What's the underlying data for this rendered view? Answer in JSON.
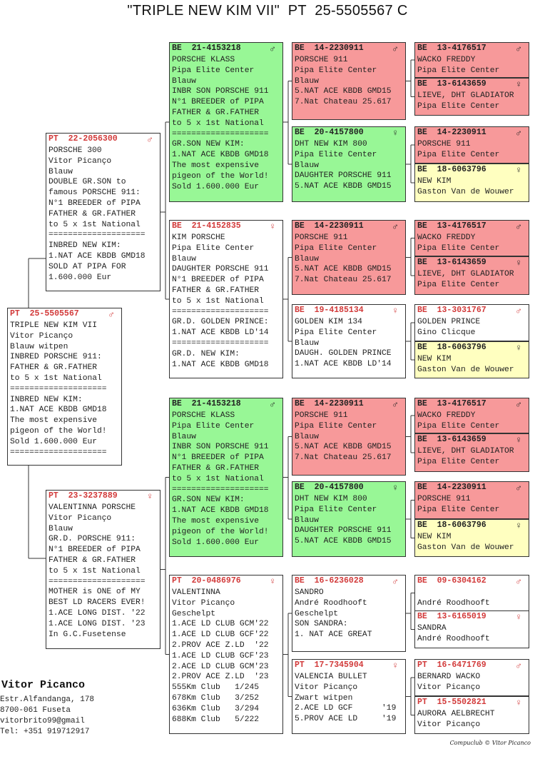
{
  "title": "\"TRIPLE NEW KIM VII\"  PT  25-5505567 C",
  "colors": {
    "green": "#98f796",
    "red": "#f7999a",
    "yellow": "#ffffc0",
    "ring_red": "#d23a3a"
  },
  "pigeons": [
    {
      "country": "PT",
      "ring": "25-5505567",
      "sex": "♂",
      "bg": "white",
      "lines": [
        "TRIPLE NEW KIM VII",
        "Vitor Picanço",
        "Blauw witpen",
        "INBRED PORSCHE 911:",
        "FATHER & GR.FATHER",
        "to 5 x 1st National",
        "====================",
        "INBRED NEW KIM:",
        "1.NAT ACE KBDB GMD18",
        "The most expensive",
        "pigeon of the World!",
        "Sold 1.600.000 Eur",
        "===================="
      ]
    },
    {
      "country": "PT",
      "ring": "22-2056300",
      "sex": "♂",
      "bg": "white",
      "lines": [
        "PORSCHE 300",
        "Vitor Picanço",
        "Blauw",
        "DOUBLE GR.SON to",
        "famous PORSCHE 911:",
        "N°1 BREEDER of PIPA",
        "FATHER & GR.FATHER",
        "to 5 x 1st National",
        "====================",
        "INBRED NEW KIM:",
        "1.NAT ACE KBDB GMD18",
        "SOLD AT PIPA FOR",
        "1.600.000 Eur"
      ]
    },
    {
      "country": "PT",
      "ring": "23-3237889",
      "sex": "♀",
      "bg": "white",
      "lines": [
        "VALENTINNA PORSCHE",
        "Vitor Picanço",
        "Blauw",
        "GR.D. PORSCHE 911:",
        "N°1 BREEDER of PIPA",
        "FATHER & GR.FATHER",
        "to 5 x 1st National",
        "====================",
        "MOTHER is ONE of MY",
        "BEST LD RACERS EVER!",
        "1.ACE LONG DIST. '22",
        "1.ACE LONG DIST. '23",
        "In G.C.Fusetense"
      ]
    },
    {
      "country": "BE",
      "ring": "21-4153218",
      "sex": "♂",
      "bg": "green",
      "lines": [
        "PORSCHE KLASS",
        "Pipa Elite Center",
        "Blauw",
        "INBR SON PORSCHE 911",
        "N°1 BREEDER of PIPA",
        "FATHER & GR.FATHER",
        "to 5 x 1st National",
        "====================",
        "GR.SON NEW KIM:",
        "1.NAT ACE KBDB GMD18",
        "The most expensive",
        "pigeon of the World!",
        "Sold 1.600.000 Eur"
      ]
    },
    {
      "country": "BE",
      "ring": "21-4152835",
      "sex": "♀",
      "bg": "white",
      "lines": [
        "KIM PORSCHE",
        "Pipa Elite Center",
        "Blauw",
        "DAUGHTER PORSCHE 911",
        "N°1 BREEDER of PIPA",
        "FATHER & GR.FATHER",
        "to 5 x 1st National",
        "====================",
        "GR.D. GOLDEN PRINCE:",
        "1.NAT ACE KBDB LD'14",
        "====================",
        "GR.D. NEW KIM:",
        "1.NAT ACE KBDB GMD18"
      ]
    },
    {
      "country": "BE",
      "ring": "21-4153218",
      "sex": "♂",
      "bg": "green",
      "lines": [
        "PORSCHE KLASS",
        "Pipa Elite Center",
        "Blauw",
        "INBR SON PORSCHE 911",
        "N°1 BREEDER of PIPA",
        "FATHER & GR.FATHER",
        "to 5 x 1st National",
        "====================",
        "GR.SON NEW KIM:",
        "1.NAT ACE KBDB GMD18",
        "The most expensive",
        "pigeon of the World!",
        "Sold 1.600.000 Eur"
      ]
    },
    {
      "country": "PT",
      "ring": "20-0486976",
      "sex": "♀",
      "bg": "white",
      "lines": [
        "VALENTINNA",
        "Vitor Picanço",
        "Geschelpt",
        "1.ACE LD CLUB GCM'22",
        "1.ACE LD CLUB GCF'22",
        "2.PROV ACE Z.LD  '22",
        "1.ACE LD CLUB GCF'23",
        "2.ACE LD CLUB GCM'23",
        "2.PROV ACE Z.LD  '23",
        "555Km Club   1/245",
        "678Km Club   3/252",
        "636Km Club   3/294",
        "688Km Club   5/222"
      ]
    },
    {
      "country": "BE",
      "ring": "14-2230911",
      "sex": "♂",
      "bg": "red",
      "lines": [
        "PORSCHE 911",
        "Pipa Elite Center",
        "Blauw",
        "5.NAT ACE KBDB GMD15",
        "7.Nat Chateau 25.617"
      ]
    },
    {
      "country": "BE",
      "ring": "20-4157800",
      "sex": "♀",
      "bg": "green",
      "lines": [
        "DHT NEW KIM 800",
        "Pipa Elite Center",
        "Blauw",
        "DAUGHTER PORSCHE 911",
        "5.NAT ACE KBDB GMD15"
      ]
    },
    {
      "country": "BE",
      "ring": "14-2230911",
      "sex": "♂",
      "bg": "red",
      "lines": [
        "PORSCHE 911",
        "Pipa Elite Center",
        "Blauw",
        "5.NAT ACE KBDB GMD15",
        "7.Nat Chateau 25.617"
      ]
    },
    {
      "country": "BE",
      "ring": "19-4185134",
      "sex": "♀",
      "bg": "white",
      "lines": [
        "GOLDEN KIM 134",
        "Pipa Elite Center",
        "Blauw",
        "DAUGH. GOLDEN PRINCE",
        "1.NAT ACE KBDB LD'14"
      ]
    },
    {
      "country": "BE",
      "ring": "14-2230911",
      "sex": "♂",
      "bg": "red",
      "lines": [
        "PORSCHE 911",
        "Pipa Elite Center",
        "Blauw",
        "5.NAT ACE KBDB GMD15",
        "7.Nat Chateau 25.617"
      ]
    },
    {
      "country": "BE",
      "ring": "20-4157800",
      "sex": "♀",
      "bg": "green",
      "lines": [
        "DHT NEW KIM 800",
        "Pipa Elite Center",
        "Blauw",
        "DAUGHTER PORSCHE 911",
        "5.NAT ACE KBDB GMD15"
      ]
    },
    {
      "country": "BE",
      "ring": "16-6236028",
      "sex": "♂",
      "bg": "white",
      "lines": [
        "SANDRO",
        "André Roodhooft",
        "Geschelpt",
        "SON SANDRA:",
        "1. NAT ACE GREAT"
      ]
    },
    {
      "country": "PT",
      "ring": "17-7345904",
      "sex": "♀",
      "bg": "white",
      "lines": [
        "VALENCIA BULLET",
        "Vitor Picanço",
        "Zwart witpen",
        "2.ACE LD GCF      '19",
        "5.PROV ACE LD     '19"
      ]
    },
    {
      "country": "BE",
      "ring": "13-4176517",
      "sex": "♂",
      "bg": "red",
      "lines": [
        "WACKO FREDDY",
        "Pipa Elite Center"
      ]
    },
    {
      "country": "BE",
      "ring": "13-6143659",
      "sex": "♀",
      "bg": "red",
      "lines": [
        "LIEVE, DHT GLADIATOR",
        "Pipa Elite Center"
      ]
    },
    {
      "country": "BE",
      "ring": "14-2230911",
      "sex": "♂",
      "bg": "red",
      "lines": [
        "PORSCHE 911",
        "Pipa Elite Center"
      ]
    },
    {
      "country": "BE",
      "ring": "18-6063796",
      "sex": "♀",
      "bg": "yellow",
      "lines": [
        "NEW KIM",
        "Gaston Van de Wouwer"
      ]
    },
    {
      "country": "BE",
      "ring": "13-4176517",
      "sex": "♂",
      "bg": "red",
      "lines": [
        "WACKO FREDDY",
        "Pipa Elite Center"
      ]
    },
    {
      "country": "BE",
      "ring": "13-6143659",
      "sex": "♀",
      "bg": "red",
      "lines": [
        "LIEVE, DHT GLADIATOR",
        "Pipa Elite Center"
      ]
    },
    {
      "country": "BE",
      "ring": "13-3031767",
      "sex": "♂",
      "bg": "white",
      "lines": [
        "GOLDEN PRINCE",
        "Gino Clicque"
      ]
    },
    {
      "country": "BE",
      "ring": "18-6063796",
      "sex": "♀",
      "bg": "yellow",
      "lines": [
        "NEW KIM",
        "Gaston Van de Wouwer"
      ]
    },
    {
      "country": "BE",
      "ring": "13-4176517",
      "sex": "♂",
      "bg": "red",
      "lines": [
        "WACKO FREDDY",
        "Pipa Elite Center"
      ]
    },
    {
      "country": "BE",
      "ring": "13-6143659",
      "sex": "♀",
      "bg": "red",
      "lines": [
        "LIEVE, DHT GLADIATOR",
        "Pipa Elite Center"
      ]
    },
    {
      "country": "BE",
      "ring": "14-2230911",
      "sex": "♂",
      "bg": "red",
      "lines": [
        "PORSCHE 911",
        "Pipa Elite Center"
      ]
    },
    {
      "country": "BE",
      "ring": "18-6063796",
      "sex": "♀",
      "bg": "yellow",
      "lines": [
        "NEW KIM",
        "Gaston Van de Wouwer"
      ]
    },
    {
      "country": "BE",
      "ring": "09-6304162",
      "sex": "♂",
      "bg": "white",
      "lines": [
        "",
        "André Roodhooft"
      ]
    },
    {
      "country": "BE",
      "ring": "13-6165019",
      "sex": "♀",
      "bg": "white",
      "lines": [
        "SANDRA",
        "André Roodhooft"
      ]
    },
    {
      "country": "PT",
      "ring": "16-6471769",
      "sex": "♂",
      "bg": "white",
      "lines": [
        "BERNARD WACKO",
        "Vitor Picanço"
      ]
    },
    {
      "country": "PT",
      "ring": "15-5502821",
      "sex": "♀",
      "bg": "white",
      "lines": [
        "AURORA AELBRECHT",
        "Vitor Picanço"
      ]
    }
  ],
  "owner": {
    "name": "Vitor Picanco",
    "address": "Estr.Alfandanga, 178",
    "postal": "8700-061 Fuseta",
    "email": "vitorbrito99@gmail",
    "phone": "Tel: +351 919712917"
  },
  "credit": "Compuclub © Vitor Picanco"
}
